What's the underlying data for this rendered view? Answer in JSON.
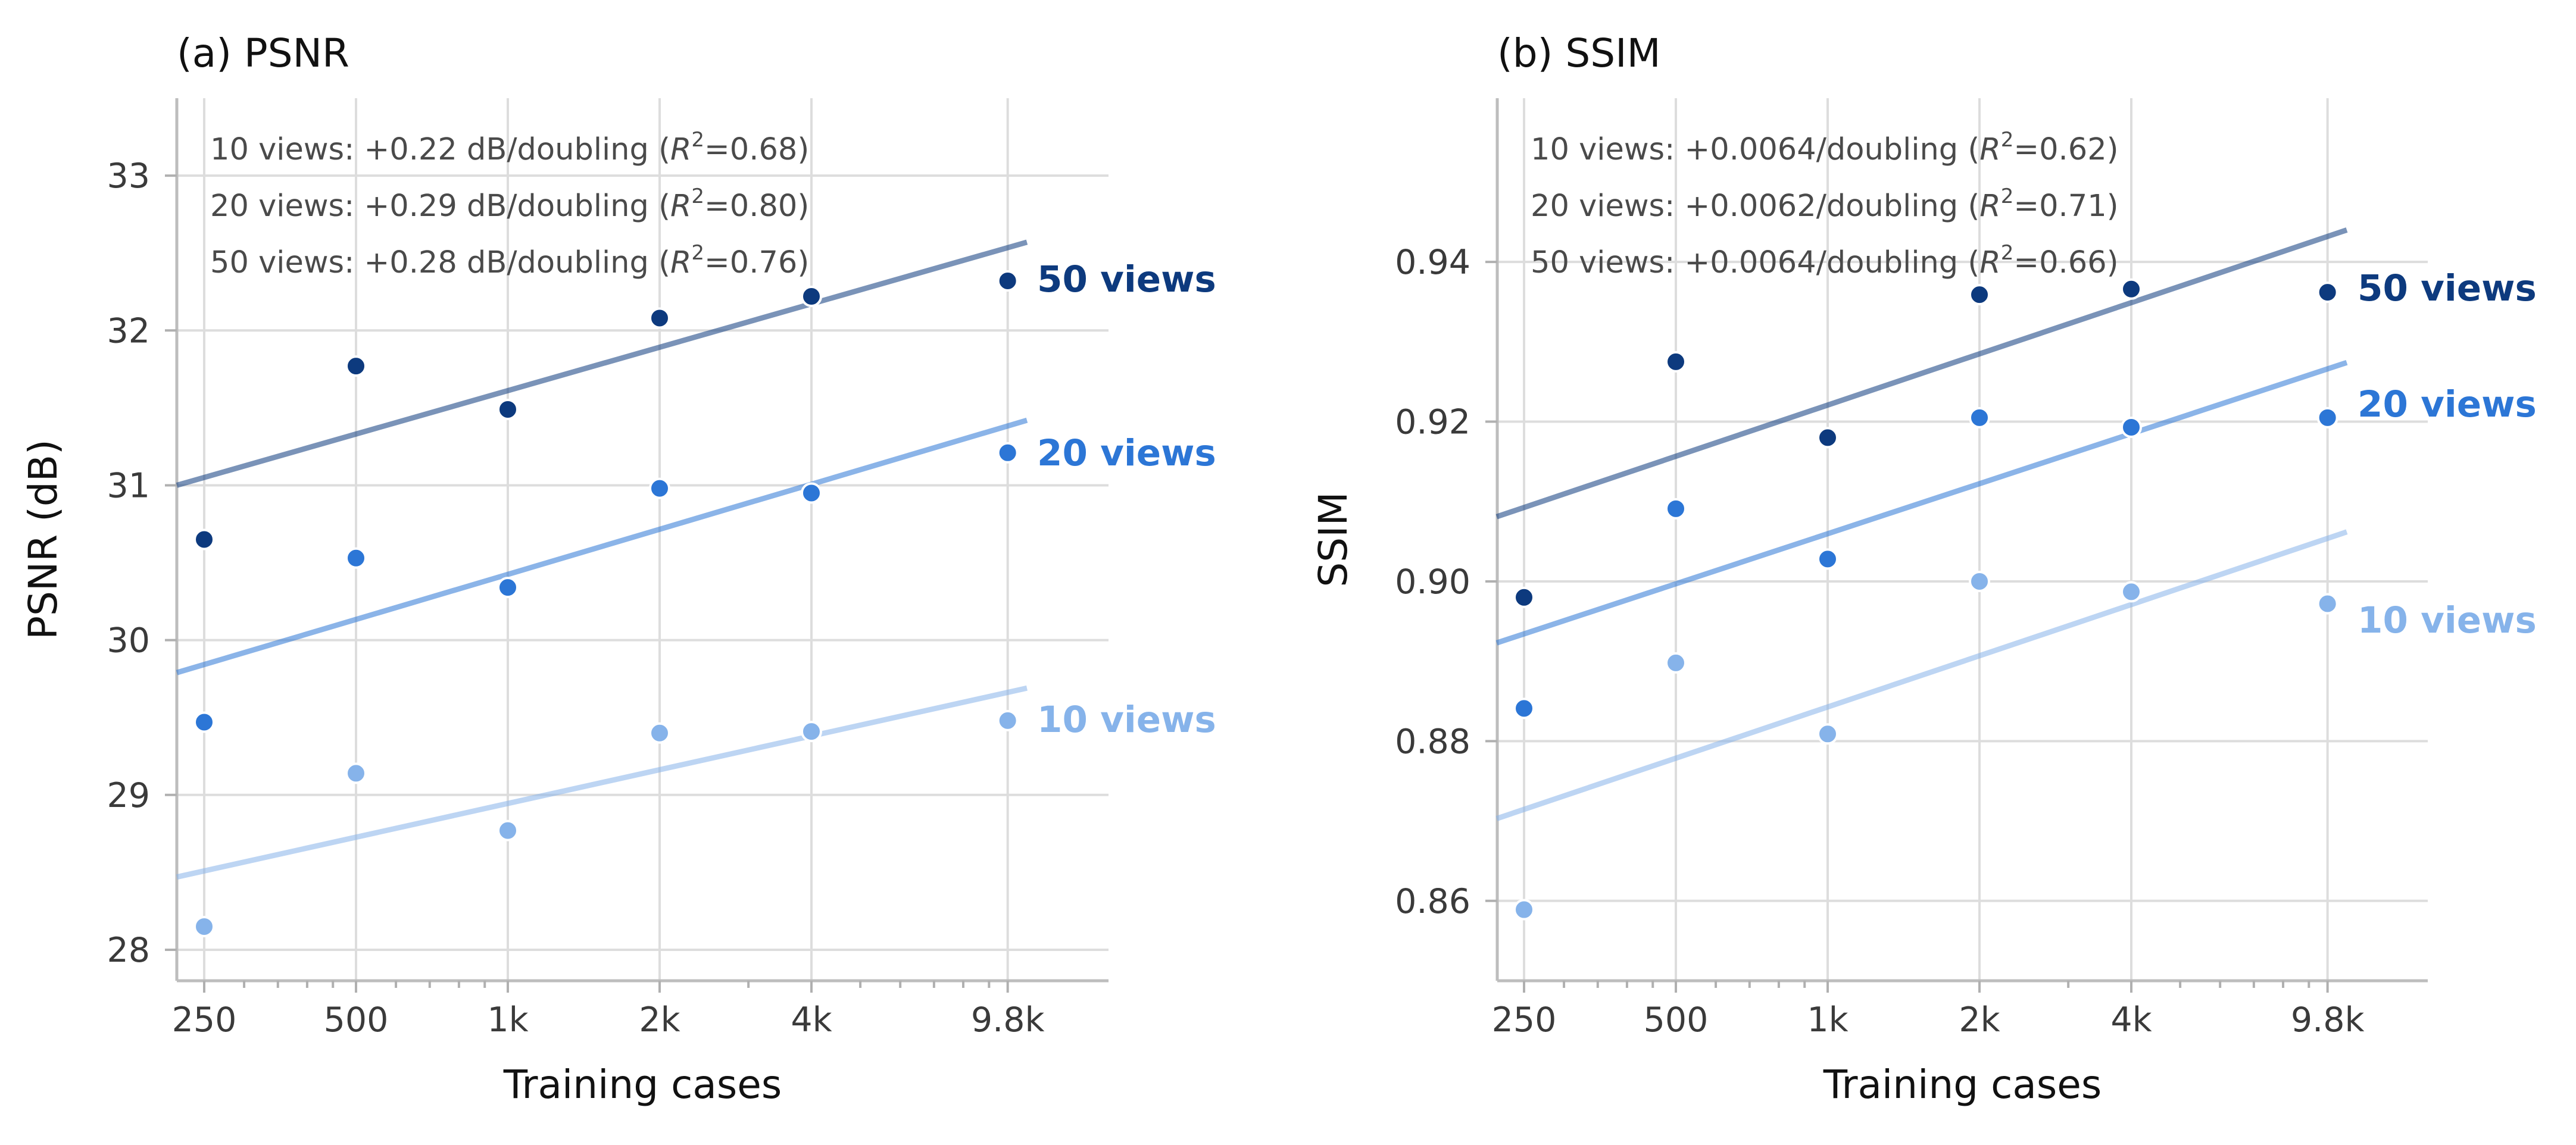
{
  "colors": {
    "10_views": "#86b3ea",
    "20_views": "#2c76d6",
    "50_views": "#0d3a7e"
  },
  "chart_data": [
    {
      "type": "scatter",
      "title": "(a)  PSNR",
      "xlabel": "Training cases",
      "ylabel": "PSNR (dB)",
      "x_scale": "log2",
      "x": [
        250,
        500,
        1000,
        2000,
        4000,
        9800
      ],
      "x_tick_labels": [
        "250",
        "500",
        "1k",
        "2k",
        "4k",
        "9.8k"
      ],
      "ylim": [
        27.8,
        33.5
      ],
      "y_ticks": [
        28,
        29,
        30,
        31,
        32,
        33
      ],
      "grid": true,
      "series": [
        {
          "name": "10 views",
          "color_key": "10_views",
          "values": [
            28.15,
            29.14,
            28.77,
            29.4,
            29.41,
            29.48
          ],
          "fit": {
            "x_start": 250,
            "y_start": 28.47,
            "x_end": 10700,
            "y_end": 29.69
          }
        },
        {
          "name": "20 views",
          "color_key": "20_views",
          "values": [
            29.47,
            30.53,
            30.34,
            30.98,
            30.95,
            31.21
          ],
          "fit": {
            "x_start": 250,
            "y_start": 29.79,
            "x_end": 10700,
            "y_end": 31.42
          }
        },
        {
          "name": "50 views",
          "color_key": "50_views",
          "values": [
            30.65,
            31.77,
            31.49,
            32.08,
            32.22,
            32.32
          ],
          "fit": {
            "x_start": 250,
            "y_start": 31.0,
            "x_end": 10700,
            "y_end": 32.57
          }
        }
      ],
      "annotations": [
        {
          "prefix": "10 views:  +0.22 dB/doubling  (",
          "r2": "0.68"
        },
        {
          "prefix": "20 views:  +0.29 dB/doubling  (",
          "r2": "0.80"
        },
        {
          "prefix": "50 views:  +0.28 dB/doubling  (",
          "r2": "0.76"
        }
      ]
    },
    {
      "type": "scatter",
      "title": "(b)  SSIM",
      "xlabel": "Training cases",
      "ylabel": "SSIM",
      "x_scale": "log2",
      "x": [
        250,
        500,
        1000,
        2000,
        4000,
        9800
      ],
      "x_tick_labels": [
        "250",
        "500",
        "1k",
        "2k",
        "4k",
        "9.8k"
      ],
      "ylim": [
        0.85,
        0.9605
      ],
      "y_ticks": [
        0.86,
        0.88,
        0.9,
        0.92,
        0.94
      ],
      "y_tick_labels": [
        "0.86",
        "0.88",
        "0.90",
        "0.92",
        "0.94"
      ],
      "grid": true,
      "series": [
        {
          "name": "10 views",
          "color_key": "10_views",
          "values": [
            0.8589,
            0.8898,
            0.8809,
            0.9,
            0.8987,
            0.8972
          ],
          "fit": {
            "x_start": 250,
            "y_start": 0.8703,
            "x_end": 10700,
            "y_end": 0.9062
          }
        },
        {
          "name": "20 views",
          "color_key": "20_views",
          "values": [
            0.8841,
            0.9091,
            0.9028,
            0.9205,
            0.9193,
            0.9205
          ],
          "fit": {
            "x_start": 250,
            "y_start": 0.8923,
            "x_end": 10700,
            "y_end": 0.9274
          }
        },
        {
          "name": "50 views",
          "color_key": "50_views",
          "values": [
            0.898,
            0.9275,
            0.918,
            0.9359,
            0.9366,
            0.9362
          ],
          "fit": {
            "x_start": 250,
            "y_start": 0.9081,
            "x_end": 10700,
            "y_end": 0.944
          }
        }
      ],
      "annotations": [
        {
          "prefix": "10 views:  +0.0064/doubling  (",
          "r2": "0.62"
        },
        {
          "prefix": "20 views:  +0.0062/doubling  (",
          "r2": "0.71"
        },
        {
          "prefix": "50 views:  +0.0064/doubling  (",
          "r2": "0.66"
        }
      ]
    }
  ]
}
